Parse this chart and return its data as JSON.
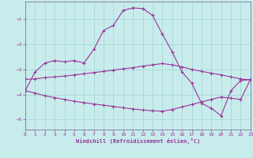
{
  "xlabel": "Windchill (Refroidissement éolien,°C)",
  "bg_color": "#c8ecec",
  "line_color": "#993399",
  "grid_color": "#a8d8d8",
  "axis_color": "#777799",
  "xlim": [
    0,
    23
  ],
  "ylim": [
    -5.4,
    -0.3
  ],
  "yticks": [
    -5,
    -4,
    -3,
    -2,
    -1
  ],
  "xticks": [
    0,
    1,
    2,
    3,
    4,
    5,
    6,
    7,
    8,
    9,
    10,
    11,
    12,
    13,
    14,
    15,
    16,
    17,
    18,
    19,
    20,
    21,
    22,
    23
  ],
  "curve1_x": [
    0,
    1,
    2,
    3,
    4,
    5,
    6,
    7,
    8,
    9,
    10,
    11,
    12,
    13,
    14,
    15,
    16,
    17,
    18,
    19,
    20,
    21,
    22,
    23
  ],
  "curve1_y": [
    -3.85,
    -3.1,
    -2.75,
    -2.65,
    -2.7,
    -2.65,
    -2.75,
    -2.2,
    -1.45,
    -1.25,
    -0.65,
    -0.55,
    -0.58,
    -0.85,
    -1.6,
    -2.3,
    -3.1,
    -3.55,
    -4.35,
    -4.55,
    -4.85,
    -3.85,
    -3.45,
    -3.4
  ],
  "curve2_x": [
    0,
    1,
    2,
    3,
    4,
    5,
    6,
    7,
    8,
    9,
    10,
    11,
    12,
    13,
    14,
    15,
    16,
    17,
    18,
    19,
    20,
    21,
    22,
    23
  ],
  "curve2_y": [
    -3.4,
    -3.38,
    -3.33,
    -3.3,
    -3.27,
    -3.22,
    -3.18,
    -3.13,
    -3.08,
    -3.03,
    -2.98,
    -2.93,
    -2.87,
    -2.82,
    -2.77,
    -2.82,
    -2.9,
    -3.0,
    -3.08,
    -3.15,
    -3.22,
    -3.3,
    -3.38,
    -3.43
  ],
  "curve3_x": [
    0,
    1,
    2,
    3,
    4,
    5,
    6,
    7,
    8,
    9,
    10,
    11,
    12,
    13,
    14,
    15,
    16,
    17,
    18,
    19,
    20,
    21,
    22,
    23
  ],
  "curve3_y": [
    -3.85,
    -3.95,
    -4.05,
    -4.13,
    -4.2,
    -4.27,
    -4.33,
    -4.38,
    -4.43,
    -4.48,
    -4.53,
    -4.58,
    -4.62,
    -4.65,
    -4.67,
    -4.6,
    -4.5,
    -4.4,
    -4.3,
    -4.2,
    -4.1,
    -4.15,
    -4.2,
    -3.4
  ]
}
